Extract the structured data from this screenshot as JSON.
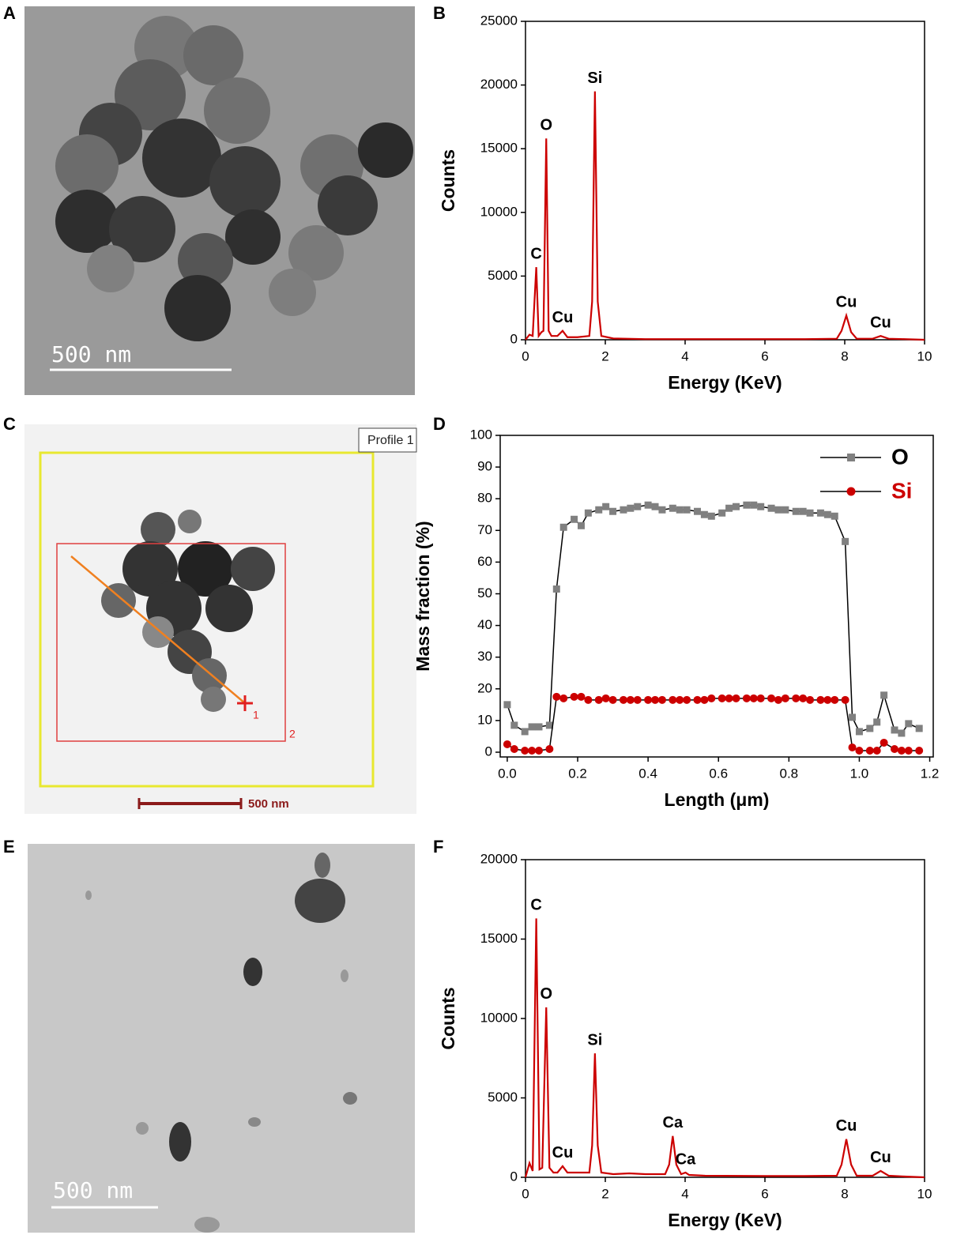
{
  "panels": [
    "A",
    "B",
    "C",
    "D",
    "E",
    "F"
  ],
  "images": [
    {
      "scale_bar": "500 nm"
    },
    {
      "tag": "Profile 1",
      "markers": [
        "1",
        "2"
      ],
      "scale_bar": "500 nm"
    },
    {
      "scale_bar": "500 nm"
    }
  ],
  "chart_data": [
    {
      "type": "line",
      "x_label": "Energy (KeV)",
      "y_label": "Counts",
      "color": "#cc0000",
      "x": [
        0,
        0.1,
        0.18,
        0.27,
        0.33,
        0.4,
        0.45,
        0.52,
        0.58,
        0.65,
        0.8,
        0.93,
        1.05,
        1.3,
        1.6,
        1.67,
        1.74,
        1.81,
        1.9,
        2.2,
        3,
        4,
        5,
        6,
        7,
        7.8,
        7.92,
        8.04,
        8.16,
        8.3,
        8.7,
        8.9,
        9.1,
        9.5,
        10
      ],
      "values": [
        0,
        400,
        300,
        5700,
        300,
        600,
        700,
        15800,
        700,
        300,
        300,
        700,
        200,
        200,
        300,
        3000,
        19500,
        3000,
        300,
        100,
        50,
        50,
        50,
        50,
        50,
        80,
        700,
        1900,
        600,
        80,
        80,
        300,
        80,
        50,
        0
      ],
      "annotations": [
        {
          "text": "C",
          "x": 0.27,
          "y": 5700
        },
        {
          "text": "O",
          "x": 0.52,
          "y": 15800
        },
        {
          "text": "Cu",
          "x": 0.93,
          "y": 700
        },
        {
          "text": "Si",
          "x": 1.74,
          "y": 19500
        },
        {
          "text": "Cu",
          "x": 8.04,
          "y": 1900
        },
        {
          "text": "Cu",
          "x": 8.9,
          "y": 300
        }
      ],
      "xlim": [
        0,
        10
      ],
      "xticks": [
        0,
        2,
        4,
        6,
        8,
        10
      ],
      "ylim": [
        0,
        25000
      ],
      "yticks": [
        0,
        5000,
        10000,
        15000,
        20000,
        25000
      ]
    },
    {
      "type": "line",
      "x_label": "Length (μm)",
      "y_label": "Mass fraction (%)",
      "line_color": "#000000",
      "legend": "upper right",
      "x": [
        0,
        0.02,
        0.05,
        0.07,
        0.09,
        0.12,
        0.14,
        0.16,
        0.19,
        0.21,
        0.23,
        0.26,
        0.28,
        0.3,
        0.33,
        0.35,
        0.37,
        0.4,
        0.42,
        0.44,
        0.47,
        0.49,
        0.51,
        0.54,
        0.56,
        0.58,
        0.61,
        0.63,
        0.65,
        0.68,
        0.7,
        0.72,
        0.75,
        0.77,
        0.79,
        0.82,
        0.84,
        0.86,
        0.89,
        0.91,
        0.93,
        0.96,
        0.98,
        1.0,
        1.03,
        1.05,
        1.07,
        1.1,
        1.12,
        1.14,
        1.17
      ],
      "series": [
        {
          "name": "O",
          "color": "#808080",
          "label_color": "#000000",
          "marker": "square",
          "values": [
            15,
            8.5,
            6.5,
            8,
            8,
            8.5,
            51.5,
            71,
            73.5,
            71.5,
            75.5,
            76.5,
            77.5,
            76,
            76.5,
            77,
            77.5,
            78,
            77.5,
            76.5,
            77,
            76.5,
            76.5,
            76,
            75,
            74.5,
            75.5,
            77,
            77.5,
            78,
            78,
            77.5,
            77,
            76.5,
            76.5,
            76,
            76,
            75.5,
            75.5,
            75,
            74.5,
            66.5,
            11,
            6.5,
            7.5,
            9.5,
            18,
            7,
            6,
            9,
            7.5
          ]
        },
        {
          "name": "Si",
          "color": "#cc0000",
          "label_color": "#cc0000",
          "marker": "circle",
          "values": [
            2.5,
            1,
            0.5,
            0.5,
            0.5,
            1,
            17.5,
            17,
            17.5,
            17.5,
            16.5,
            16.5,
            17,
            16.5,
            16.5,
            16.5,
            16.5,
            16.5,
            16.5,
            16.5,
            16.5,
            16.5,
            16.5,
            16.5,
            16.5,
            17,
            17,
            17,
            17,
            17,
            17,
            17,
            17,
            16.5,
            17,
            17,
            17,
            16.5,
            16.5,
            16.5,
            16.5,
            16.5,
            1.5,
            0.5,
            0.5,
            0.5,
            3,
            1,
            0.5,
            0.5,
            0.5
          ]
        }
      ],
      "xlim": [
        -0.02,
        1.21
      ],
      "xticks": [
        {
          "value": 0,
          "label": "0.0"
        },
        0.2,
        0.4,
        0.6,
        0.8,
        {
          "value": 1,
          "label": "1.0"
        },
        1.2
      ],
      "ylim": [
        -1.5,
        100
      ],
      "yticks": [
        0,
        10,
        20,
        30,
        40,
        50,
        60,
        70,
        80,
        90,
        100
      ]
    },
    {
      "type": "line",
      "x_label": "Energy (KeV)",
      "y_label": "Counts",
      "color": "#cc0000",
      "x": [
        0,
        0.1,
        0.18,
        0.27,
        0.35,
        0.42,
        0.52,
        0.6,
        0.7,
        0.8,
        0.93,
        1.05,
        1.3,
        1.6,
        1.67,
        1.74,
        1.81,
        1.9,
        2.2,
        2.6,
        3.0,
        3.5,
        3.6,
        3.69,
        3.78,
        3.9,
        4.01,
        4.1,
        4.5,
        6,
        7,
        7.8,
        7.92,
        8.04,
        8.16,
        8.3,
        8.7,
        8.9,
        9.1,
        9.5,
        10
      ],
      "values": [
        0,
        900,
        400,
        16300,
        500,
        600,
        10700,
        600,
        300,
        300,
        700,
        300,
        300,
        300,
        2000,
        7800,
        2000,
        300,
        200,
        250,
        200,
        200,
        800,
        2600,
        800,
        200,
        300,
        150,
        100,
        80,
        80,
        100,
        800,
        2400,
        800,
        100,
        100,
        400,
        100,
        50,
        0
      ],
      "annotations": [
        {
          "text": "C",
          "x": 0.27,
          "y": 16300
        },
        {
          "text": "O",
          "x": 0.52,
          "y": 10700
        },
        {
          "text": "Cu",
          "x": 0.93,
          "y": 700
        },
        {
          "text": "Si",
          "x": 1.74,
          "y": 7800
        },
        {
          "text": "Ca",
          "x": 3.69,
          "y": 2600
        },
        {
          "text": "Ca",
          "x": 4.01,
          "y": 300
        },
        {
          "text": "Cu",
          "x": 8.04,
          "y": 2400
        },
        {
          "text": "Cu",
          "x": 8.9,
          "y": 400
        }
      ],
      "xlim": [
        0,
        10
      ],
      "xticks": [
        0,
        2,
        4,
        6,
        8,
        10
      ],
      "ylim": [
        0,
        20000
      ],
      "yticks": [
        0,
        5000,
        10000,
        15000,
        20000
      ]
    }
  ]
}
